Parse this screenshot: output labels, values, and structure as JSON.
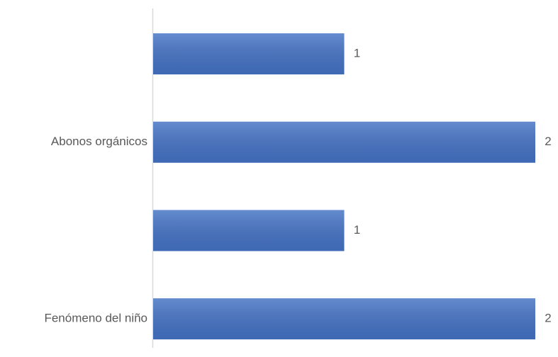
{
  "chart_data": {
    "type": "hbar",
    "categories": [
      null,
      "Abonos orgánicos",
      null,
      "Fenómeno del niño"
    ],
    "values": [
      1,
      2,
      1,
      2
    ],
    "color": "#4472c4"
  }
}
